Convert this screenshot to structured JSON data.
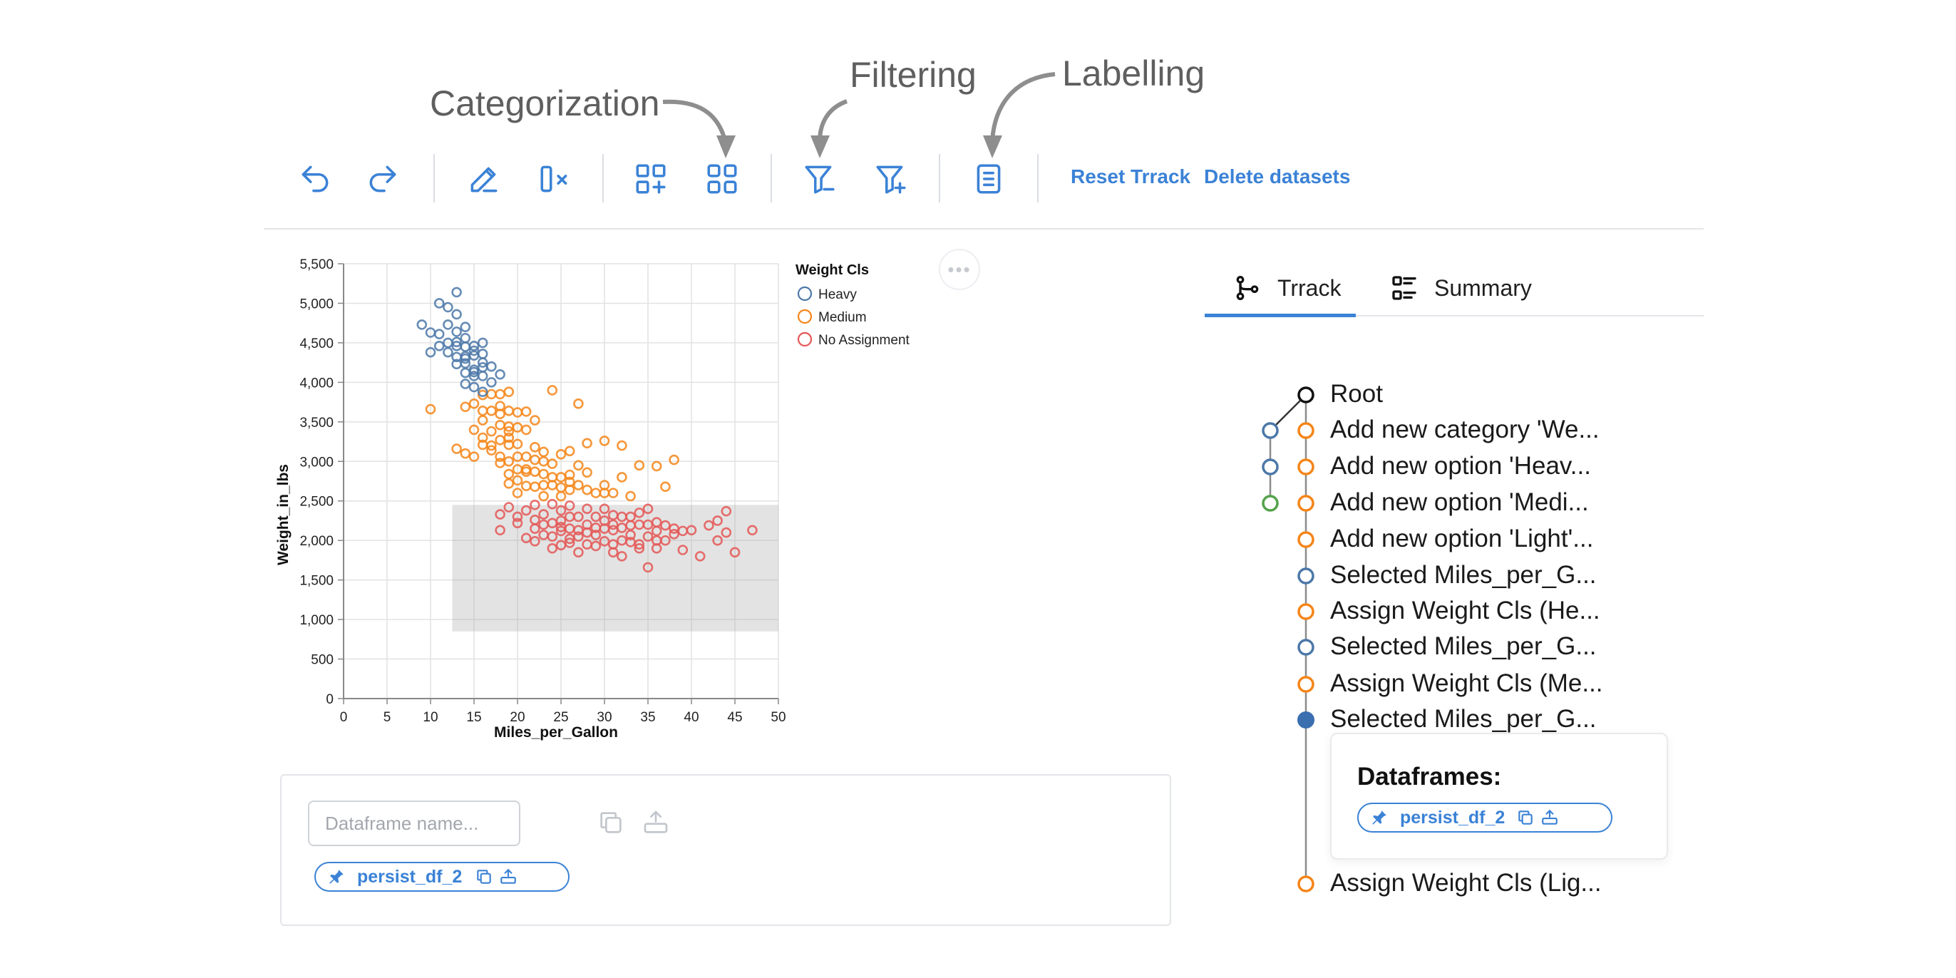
{
  "annotations": {
    "categorization": "Categorization",
    "filtering": "Filtering",
    "labelling": "Labelling"
  },
  "toolbar": {
    "icons": [
      "undo-icon",
      "redo-icon",
      "edit-icon",
      "clear-column-icon",
      "add-category-icon",
      "category-grid-icon",
      "filter-out-icon",
      "filter-in-icon",
      "label-document-icon"
    ],
    "reset_label": "Reset Trrack",
    "delete_label": "Delete datasets",
    "accent_color": "#3b82d6"
  },
  "chart_data": {
    "type": "scatter",
    "xlabel": "Miles_per_Gallon",
    "ylabel": "Weight_in_lbs",
    "xlim": [
      0,
      50
    ],
    "ylim": [
      0,
      5500
    ],
    "x_ticks": [
      "0",
      "5",
      "10",
      "15",
      "20",
      "25",
      "30",
      "35",
      "40",
      "45",
      "50"
    ],
    "y_ticks": [
      "0",
      "500",
      "1,000",
      "1,500",
      "2,000",
      "2,500",
      "3,000",
      "3,500",
      "4,000",
      "4,500",
      "5,000",
      "5,500"
    ],
    "grid": true,
    "legend_position": "right",
    "legend_title": "Weight Cls",
    "selection_brush": {
      "x": [
        12.5,
        50
      ],
      "y": [
        850,
        2450
      ]
    },
    "series": [
      {
        "name": "Heavy",
        "color": "#4c78a8",
        "points": [
          [
            9,
            4730
          ],
          [
            10,
            4630
          ],
          [
            10,
            4380
          ],
          [
            11,
            5000
          ],
          [
            11,
            4610
          ],
          [
            11,
            4460
          ],
          [
            12,
            4950
          ],
          [
            12,
            4730
          ],
          [
            12,
            4500
          ],
          [
            13,
            5140
          ],
          [
            13,
            4460
          ],
          [
            13,
            4510
          ],
          [
            13,
            4320
          ],
          [
            13,
            4640
          ],
          [
            14,
            4300
          ],
          [
            14,
            4450
          ],
          [
            14,
            4120
          ],
          [
            14,
            4700
          ],
          [
            14,
            3980
          ],
          [
            14,
            4240
          ],
          [
            14,
            4330
          ],
          [
            15,
            4130
          ],
          [
            15,
            3940
          ],
          [
            15,
            4160
          ],
          [
            15,
            4460
          ],
          [
            15,
            4340
          ],
          [
            15,
            4080
          ],
          [
            16,
            4250
          ],
          [
            16,
            4190
          ],
          [
            16,
            3880
          ],
          [
            16,
            4360
          ],
          [
            16,
            4500
          ],
          [
            17,
            4000
          ],
          [
            17,
            4200
          ],
          [
            18,
            4100
          ],
          [
            15,
            4400
          ],
          [
            13,
            4230
          ],
          [
            16,
            4080
          ],
          [
            12,
            4380
          ],
          [
            14,
            4560
          ],
          [
            13,
            4860
          ]
        ]
      },
      {
        "name": "Medium",
        "color": "#f58518",
        "points": [
          [
            10,
            3660
          ],
          [
            13,
            3160
          ],
          [
            14,
            3690
          ],
          [
            14,
            3100
          ],
          [
            15,
            3730
          ],
          [
            15,
            3400
          ],
          [
            15,
            3060
          ],
          [
            16,
            3640
          ],
          [
            16,
            3520
          ],
          [
            16,
            3210
          ],
          [
            16,
            3840
          ],
          [
            17,
            3850
          ],
          [
            17,
            3640
          ],
          [
            17,
            3140
          ],
          [
            17,
            3380
          ],
          [
            18,
            3460
          ],
          [
            18,
            3850
          ],
          [
            18,
            3060
          ],
          [
            18,
            2980
          ],
          [
            18,
            3600
          ],
          [
            18,
            3270
          ],
          [
            19,
            3880
          ],
          [
            19,
            3640
          ],
          [
            19,
            3440
          ],
          [
            19,
            3210
          ],
          [
            19,
            3300
          ],
          [
            19,
            2840
          ],
          [
            19,
            2720
          ],
          [
            19,
            3380
          ],
          [
            20,
            3430
          ],
          [
            20,
            3220
          ],
          [
            20,
            3060
          ],
          [
            20,
            2760
          ],
          [
            20,
            3620
          ],
          [
            20,
            2600
          ],
          [
            21,
            3630
          ],
          [
            21,
            3060
          ],
          [
            21,
            2870
          ],
          [
            21,
            2690
          ],
          [
            22,
            3520
          ],
          [
            22,
            2870
          ],
          [
            22,
            2680
          ],
          [
            22,
            3180
          ],
          [
            23,
            2840
          ],
          [
            23,
            3120
          ],
          [
            23,
            2560
          ],
          [
            24,
            2970
          ],
          [
            24,
            2700
          ],
          [
            24,
            3900
          ],
          [
            25,
            3090
          ],
          [
            25,
            2800
          ],
          [
            25,
            2670
          ],
          [
            26,
            2830
          ],
          [
            26,
            3130
          ],
          [
            26,
            2640
          ],
          [
            27,
            2950
          ],
          [
            27,
            2700
          ],
          [
            27,
            3730
          ],
          [
            28,
            2860
          ],
          [
            28,
            3230
          ],
          [
            29,
            2600
          ],
          [
            30,
            3260
          ],
          [
            30,
            2700
          ],
          [
            31,
            2600
          ],
          [
            32,
            3200
          ],
          [
            32,
            2800
          ],
          [
            33,
            2560
          ],
          [
            34,
            2950
          ],
          [
            36,
            2940
          ],
          [
            37,
            2680
          ],
          [
            38,
            3020
          ],
          [
            21,
            2900
          ],
          [
            23,
            2700
          ],
          [
            22,
            3020
          ],
          [
            25,
            2560
          ],
          [
            28,
            2640
          ],
          [
            19,
            3000
          ],
          [
            20,
            2900
          ],
          [
            24,
            2800
          ],
          [
            26,
            2740
          ],
          [
            30,
            2600
          ],
          [
            17,
            3200
          ],
          [
            18,
            3700
          ],
          [
            21,
            3400
          ],
          [
            16,
            3300
          ],
          [
            23,
            3000
          ]
        ]
      },
      {
        "name": "No Assignment",
        "color": "#e45756",
        "points": [
          [
            18,
            2130
          ],
          [
            18,
            2330
          ],
          [
            19,
            2420
          ],
          [
            20,
            2300
          ],
          [
            20,
            2220
          ],
          [
            21,
            2380
          ],
          [
            21,
            2030
          ],
          [
            22,
            2260
          ],
          [
            22,
            1990
          ],
          [
            22,
            2450
          ],
          [
            23,
            2200
          ],
          [
            23,
            2070
          ],
          [
            23,
            2330
          ],
          [
            24,
            2220
          ],
          [
            24,
            1900
          ],
          [
            24,
            2460
          ],
          [
            25,
            2170
          ],
          [
            25,
            2380
          ],
          [
            25,
            1940
          ],
          [
            25,
            2120
          ],
          [
            26,
            2300
          ],
          [
            26,
            2020
          ],
          [
            26,
            2440
          ],
          [
            26,
            1970
          ],
          [
            27,
            2130
          ],
          [
            27,
            2300
          ],
          [
            27,
            1850
          ],
          [
            28,
            2200
          ],
          [
            28,
            2400
          ],
          [
            28,
            1950
          ],
          [
            29,
            2070
          ],
          [
            29,
            2300
          ],
          [
            29,
            2160
          ],
          [
            30,
            1990
          ],
          [
            30,
            2150
          ],
          [
            30,
            2400
          ],
          [
            31,
            1850
          ],
          [
            31,
            1950
          ],
          [
            31,
            2200
          ],
          [
            31,
            2130
          ],
          [
            32,
            1800
          ],
          [
            32,
            2000
          ],
          [
            32,
            2160
          ],
          [
            33,
            2070
          ],
          [
            33,
            1980
          ],
          [
            33,
            2300
          ],
          [
            34,
            1950
          ],
          [
            34,
            2200
          ],
          [
            34,
            1900
          ],
          [
            35,
            1660
          ],
          [
            35,
            2050
          ],
          [
            35,
            2200
          ],
          [
            35,
            2400
          ],
          [
            36,
            1900
          ],
          [
            36,
            2120
          ],
          [
            36,
            2230
          ],
          [
            37,
            2000
          ],
          [
            37,
            2190
          ],
          [
            38,
            2150
          ],
          [
            39,
            1880
          ],
          [
            39,
            2120
          ],
          [
            40,
            2130
          ],
          [
            41,
            1800
          ],
          [
            42,
            2190
          ],
          [
            43,
            2000
          ],
          [
            43,
            2250
          ],
          [
            44,
            2370
          ],
          [
            44,
            2100
          ],
          [
            45,
            1850
          ],
          [
            47,
            2130
          ],
          [
            28,
            2100
          ],
          [
            32,
            2300
          ],
          [
            30,
            2250
          ],
          [
            27,
            2050
          ],
          [
            26,
            2150
          ],
          [
            33,
            2190
          ],
          [
            31,
            2320
          ],
          [
            29,
            1930
          ],
          [
            34,
            2350
          ],
          [
            36,
            2000
          ],
          [
            25,
            2250
          ],
          [
            24,
            2050
          ],
          [
            22,
            2150
          ],
          [
            38,
            2080
          ]
        ]
      }
    ]
  },
  "tabs": [
    {
      "label": "Trrack",
      "icon": "branch-icon",
      "active": true
    },
    {
      "label": "Summary",
      "icon": "list-summary-icon",
      "active": false
    }
  ],
  "trrack_nodes": [
    {
      "label": "Root",
      "color": "#111111"
    },
    {
      "label": "Add new category 'We...",
      "color": "#f58518"
    },
    {
      "label": "Add new option 'Heav...",
      "color": "#f58518"
    },
    {
      "label": "Add new option 'Medi...",
      "color": "#f58518"
    },
    {
      "label": "Add new option 'Light'...",
      "color": "#f58518"
    },
    {
      "label": "Selected Miles_per_G...",
      "color": "#4c78a8"
    },
    {
      "label": "Assign Weight Cls (He...",
      "color": "#f58518"
    },
    {
      "label": "Selected Miles_per_G...",
      "color": "#4c78a8"
    },
    {
      "label": "Assign Weight Cls (Me...",
      "color": "#f58518"
    },
    {
      "label": "Selected Miles_per_G...",
      "color": "#4c78a8",
      "current": true
    },
    {
      "label": "Assign Weight Cls (Lig...",
      "color": "#f58518"
    }
  ],
  "side_branch_colors": [
    "#4c78a8",
    "#4c78a8",
    "#54a24b"
  ],
  "dataframes_popup": {
    "title": "Dataframes:",
    "pill_label": "persist_df_2"
  },
  "bottom_panel": {
    "input_placeholder": "Dataframe name...",
    "input_value": "",
    "pill_label": "persist_df_2"
  }
}
